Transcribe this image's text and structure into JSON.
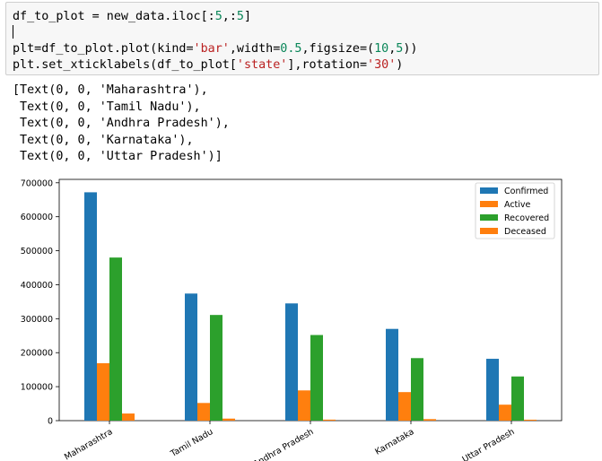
{
  "code": {
    "lines": [
      [
        {
          "t": "df_to_plot = new_data.iloc[:"
        },
        {
          "t": "5",
          "c": "num"
        },
        {
          "t": ",:"
        },
        {
          "t": "5",
          "c": "num"
        },
        {
          "t": "]"
        }
      ],
      [],
      [
        {
          "t": "plt=df_to_plot.plot(kind="
        },
        {
          "t": "'bar'",
          "c": "str"
        },
        {
          "t": ",width="
        },
        {
          "t": "0.5",
          "c": "num"
        },
        {
          "t": ",figsize=("
        },
        {
          "t": "10",
          "c": "num"
        },
        {
          "t": ","
        },
        {
          "t": "5",
          "c": "num"
        },
        {
          "t": "))"
        }
      ],
      [
        {
          "t": "plt.set_xticklabels(df_to_plot["
        },
        {
          "t": "'state'",
          "c": "str"
        },
        {
          "t": "],rotation="
        },
        {
          "t": "'30'",
          "c": "str"
        },
        {
          "t": ")"
        }
      ]
    ]
  },
  "output": {
    "lines": [
      "[Text(0, 0, 'Maharashtra'),",
      " Text(0, 0, 'Tamil Nadu'),",
      " Text(0, 0, 'Andhra Pradesh'),",
      " Text(0, 0, 'Karnataka'),",
      " Text(0, 0, 'Uttar Pradesh')]"
    ]
  },
  "chart_data": {
    "type": "bar",
    "categories": [
      "Maharashtra",
      "Tamil Nadu",
      "Andhra Pradesh",
      "Karnataka",
      "Uttar Pradesh"
    ],
    "series": [
      {
        "name": "Confirmed",
        "color": "#1f77b4",
        "values": [
          672000,
          374000,
          345000,
          270000,
          182000
        ]
      },
      {
        "name": "Active",
        "color": "#ff7f0e",
        "values": [
          169000,
          52000,
          89000,
          84000,
          47000
        ]
      },
      {
        "name": "Recovered",
        "color": "#2ca02c",
        "values": [
          480000,
          311000,
          252000,
          184000,
          130000
        ]
      },
      {
        "name": "Deceased",
        "color": "#ff7f0e",
        "values": [
          21000,
          6000,
          3000,
          4500,
          2800
        ]
      }
    ],
    "ylim": [
      0,
      710000
    ],
    "yticks": [
      0,
      100000,
      200000,
      300000,
      400000,
      500000,
      600000,
      700000
    ],
    "ytick_labels": [
      "0",
      "100000",
      "200000",
      "300000",
      "400000",
      "500000",
      "600000",
      "700000"
    ],
    "legend_position": "top-right",
    "grid": false,
    "xtick_rotation": 30
  }
}
